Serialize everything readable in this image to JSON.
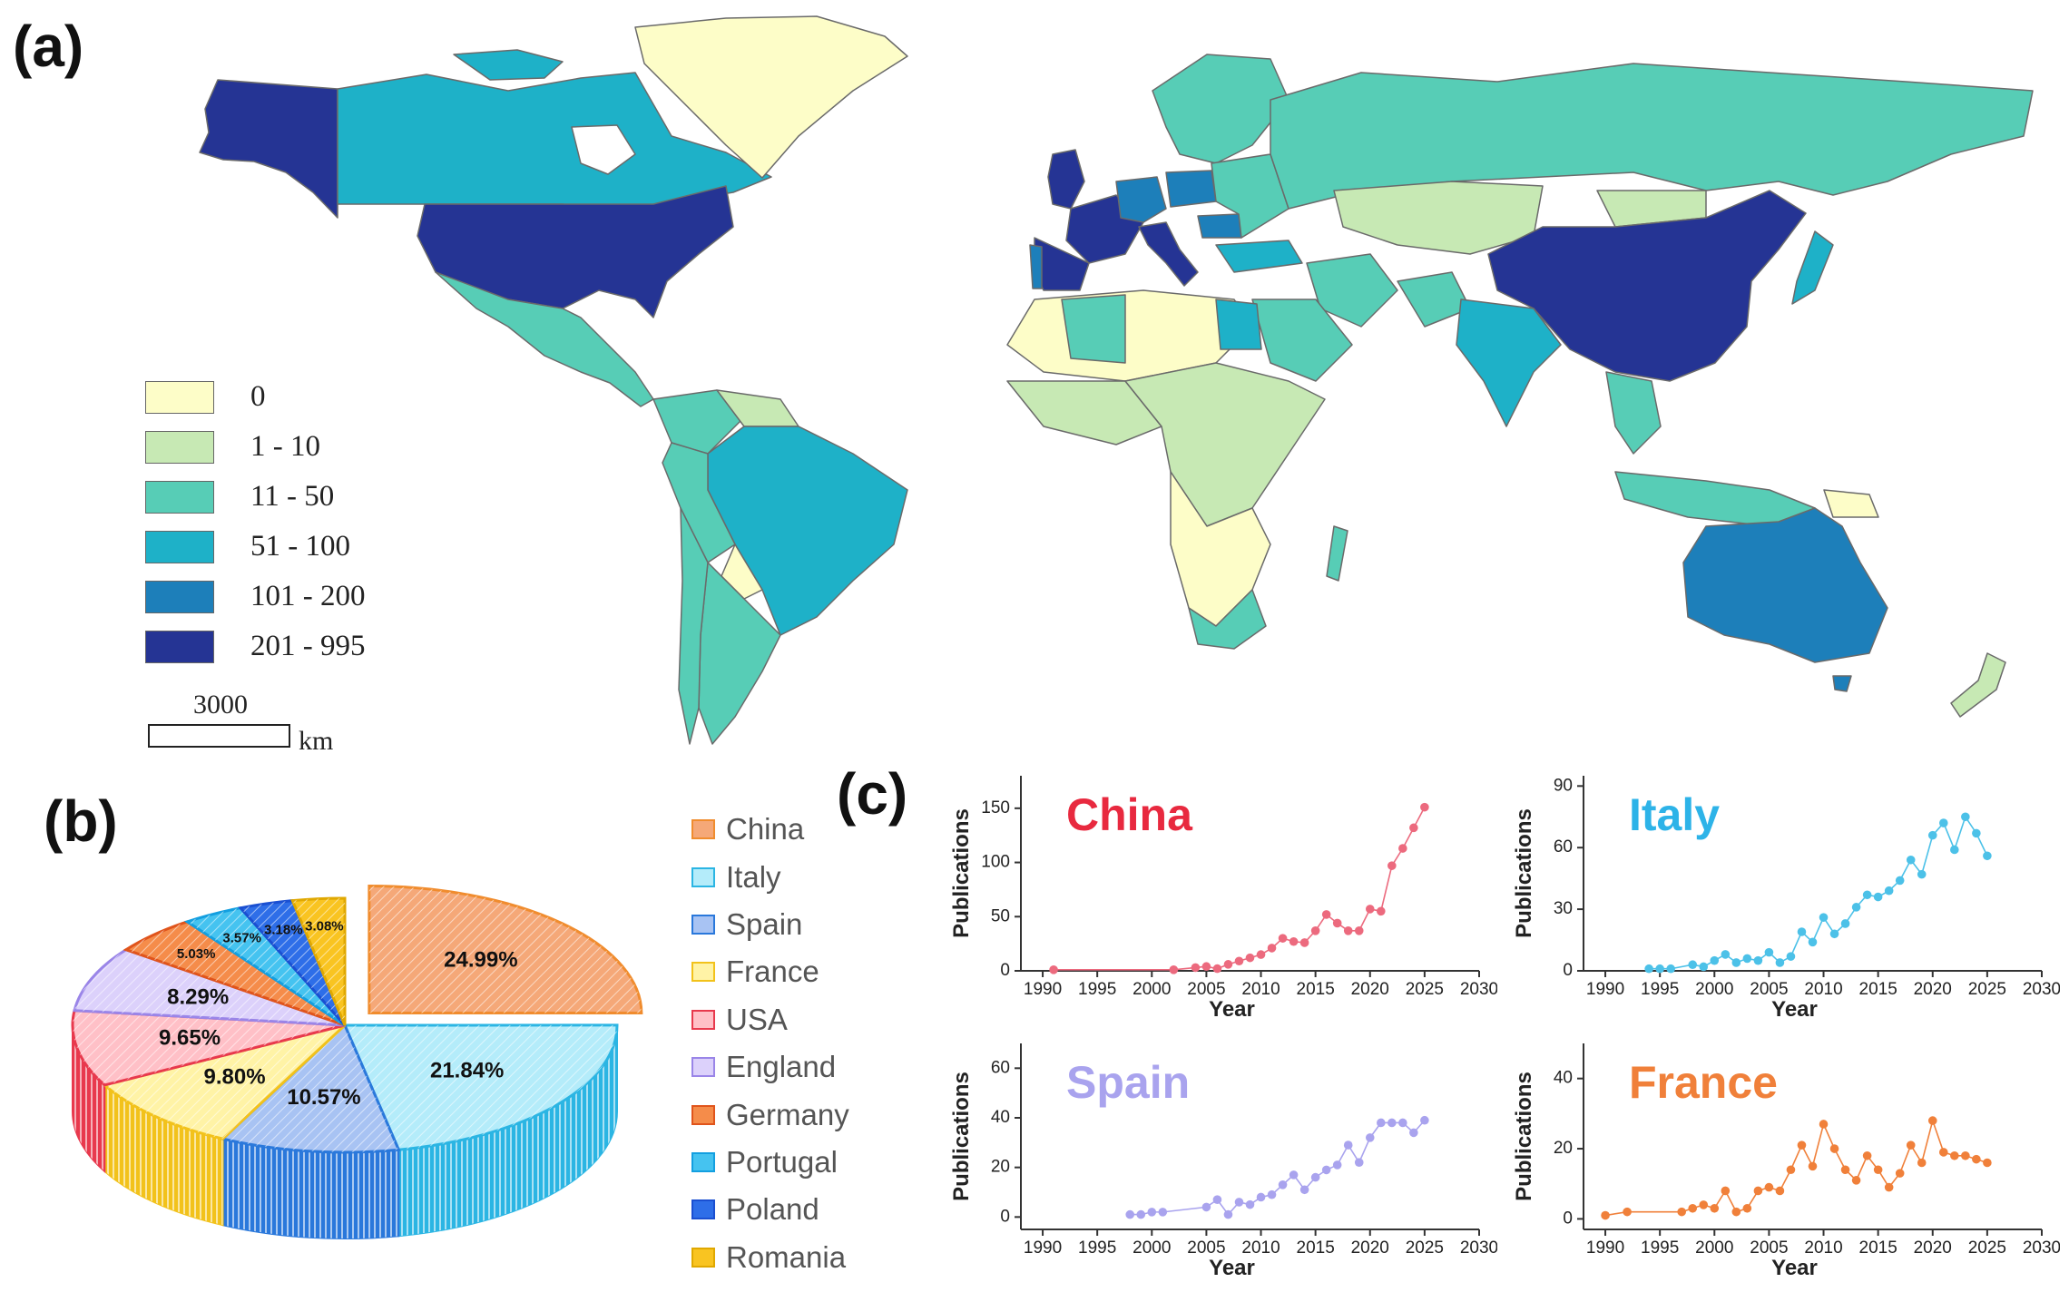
{
  "panels": {
    "a": "(a)",
    "b": "(b)",
    "c": "(c)"
  },
  "map": {
    "legend": [
      {
        "label": "0",
        "color": "#fdfdc8"
      },
      {
        "label": "1 - 10",
        "color": "#c7e9b4"
      },
      {
        "label": "11 - 50",
        "color": "#57cdb6"
      },
      {
        "label": "51 - 100",
        "color": "#1eb1c8"
      },
      {
        "label": "101 - 200",
        "color": "#1d7fba"
      },
      {
        "label": "201 - 995",
        "color": "#253494"
      }
    ],
    "scalebar": {
      "value": "3000",
      "unit": "km"
    }
  },
  "chart_data": [
    {
      "type": "pie",
      "slices": [
        {
          "name": "China",
          "value": 24.99,
          "label": "24.99%",
          "color": "#f5a878",
          "edge": "#f08c2e"
        },
        {
          "name": "Italy",
          "value": 21.84,
          "label": "21.84%",
          "color": "#b4ecfa",
          "edge": "#2bb5e3"
        },
        {
          "name": "Spain",
          "value": 10.57,
          "label": "10.57%",
          "color": "#a8c3f3",
          "edge": "#2a78db"
        },
        {
          "name": "France",
          "value": 9.8,
          "label": "9.80%",
          "color": "#fff3a6",
          "edge": "#f2c21b"
        },
        {
          "name": "USA",
          "value": 9.65,
          "label": "9.65%",
          "color": "#ffc0c7",
          "edge": "#e8394d"
        },
        {
          "name": "England",
          "value": 8.29,
          "label": "8.29%",
          "color": "#dcd1fb",
          "edge": "#9a85e8"
        },
        {
          "name": "Germany",
          "value": 5.03,
          "label": "5.03%",
          "color": "#f58c4a",
          "edge": "#e0541b"
        },
        {
          "name": "Portugal",
          "value": 3.57,
          "label": "3.57%",
          "color": "#45c3f0",
          "edge": "#139fe0"
        },
        {
          "name": "Poland",
          "value": 3.18,
          "label": "3.18%",
          "color": "#2e6ee8",
          "edge": "#1a4fd1"
        },
        {
          "name": "Romania",
          "value": 3.08,
          "label": "3.08%",
          "color": "#f9c421",
          "edge": "#e0a800"
        }
      ]
    },
    {
      "type": "line",
      "title": "China",
      "title_color": "#e8293f",
      "line_color": "#ec6a7e",
      "xlabel": "Year",
      "ylabel": "Publications",
      "xlim": [
        1988,
        2030
      ],
      "ylim": [
        0,
        180
      ],
      "xticks": [
        1990,
        1995,
        2000,
        2005,
        2010,
        2015,
        2020,
        2025,
        2030
      ],
      "yticks": [
        0,
        50,
        100,
        150
      ],
      "x": [
        1991,
        2002,
        2004,
        2005,
        2006,
        2007,
        2008,
        2009,
        2010,
        2011,
        2012,
        2013,
        2014,
        2015,
        2016,
        2017,
        2018,
        2019,
        2020,
        2021,
        2022,
        2023,
        2024,
        2025
      ],
      "y": [
        1,
        1,
        3,
        4,
        2,
        6,
        9,
        12,
        15,
        21,
        30,
        27,
        26,
        37,
        52,
        44,
        37,
        37,
        57,
        55,
        97,
        113,
        132,
        151
      ]
    },
    {
      "type": "line",
      "title": "Italy",
      "title_color": "#2db3e8",
      "line_color": "#4cc1e8",
      "xlabel": "Year",
      "ylabel": "Publications",
      "xlim": [
        1988,
        2030
      ],
      "ylim": [
        0,
        95
      ],
      "xticks": [
        1990,
        1995,
        2000,
        2005,
        2010,
        2015,
        2020,
        2025,
        2030
      ],
      "yticks": [
        0,
        30,
        60,
        90
      ],
      "x": [
        1994,
        1995,
        1996,
        1998,
        1999,
        2000,
        2001,
        2002,
        2003,
        2004,
        2005,
        2006,
        2007,
        2008,
        2009,
        2010,
        2011,
        2012,
        2013,
        2014,
        2015,
        2016,
        2017,
        2018,
        2019,
        2020,
        2021,
        2022,
        2023,
        2024,
        2025
      ],
      "y": [
        1,
        1,
        1,
        3,
        2,
        5,
        8,
        4,
        6,
        5,
        9,
        4,
        7,
        19,
        14,
        26,
        18,
        23,
        31,
        37,
        36,
        39,
        44,
        54,
        47,
        66,
        72,
        59,
        75,
        67,
        56
      ]
    },
    {
      "type": "line",
      "title": "Spain",
      "title_color": "#a9a3ee",
      "line_color": "#a9a3ee",
      "xlabel": "Year",
      "ylabel": "Publications",
      "xlim": [
        1988,
        2030
      ],
      "ylim": [
        -5,
        70
      ],
      "xticks": [
        1990,
        1995,
        2000,
        2005,
        2010,
        2015,
        2020,
        2025,
        2030
      ],
      "yticks": [
        0,
        20,
        40,
        60
      ],
      "x": [
        1998,
        1999,
        2000,
        2001,
        2005,
        2006,
        2007,
        2008,
        2009,
        2010,
        2011,
        2012,
        2013,
        2014,
        2015,
        2016,
        2017,
        2018,
        2019,
        2020,
        2021,
        2022,
        2023,
        2024,
        2025
      ],
      "y": [
        1,
        1,
        2,
        2,
        4,
        7,
        1,
        6,
        5,
        8,
        9,
        13,
        17,
        11,
        16,
        19,
        21,
        29,
        22,
        32,
        38,
        38,
        38,
        34,
        39
      ]
    },
    {
      "type": "line",
      "title": "France",
      "title_color": "#f0803a",
      "line_color": "#f0803a",
      "xlabel": "Year",
      "ylabel": "Publications",
      "xlim": [
        1988,
        2030
      ],
      "ylim": [
        -3,
        50
      ],
      "xticks": [
        1990,
        1995,
        2000,
        2005,
        2010,
        2015,
        2020,
        2025,
        2030
      ],
      "yticks": [
        0,
        20,
        40
      ],
      "x": [
        1990,
        1992,
        1997,
        1998,
        1999,
        2000,
        2001,
        2002,
        2003,
        2004,
        2005,
        2006,
        2007,
        2008,
        2009,
        2010,
        2011,
        2012,
        2013,
        2014,
        2015,
        2016,
        2017,
        2018,
        2019,
        2020,
        2021,
        2022,
        2023,
        2024,
        2025
      ],
      "y": [
        1,
        2,
        2,
        3,
        4,
        3,
        8,
        2,
        3,
        8,
        9,
        8,
        14,
        21,
        15,
        27,
        20,
        14,
        11,
        18,
        14,
        9,
        13,
        21,
        16,
        28,
        19,
        18,
        18,
        17,
        16
      ]
    }
  ]
}
